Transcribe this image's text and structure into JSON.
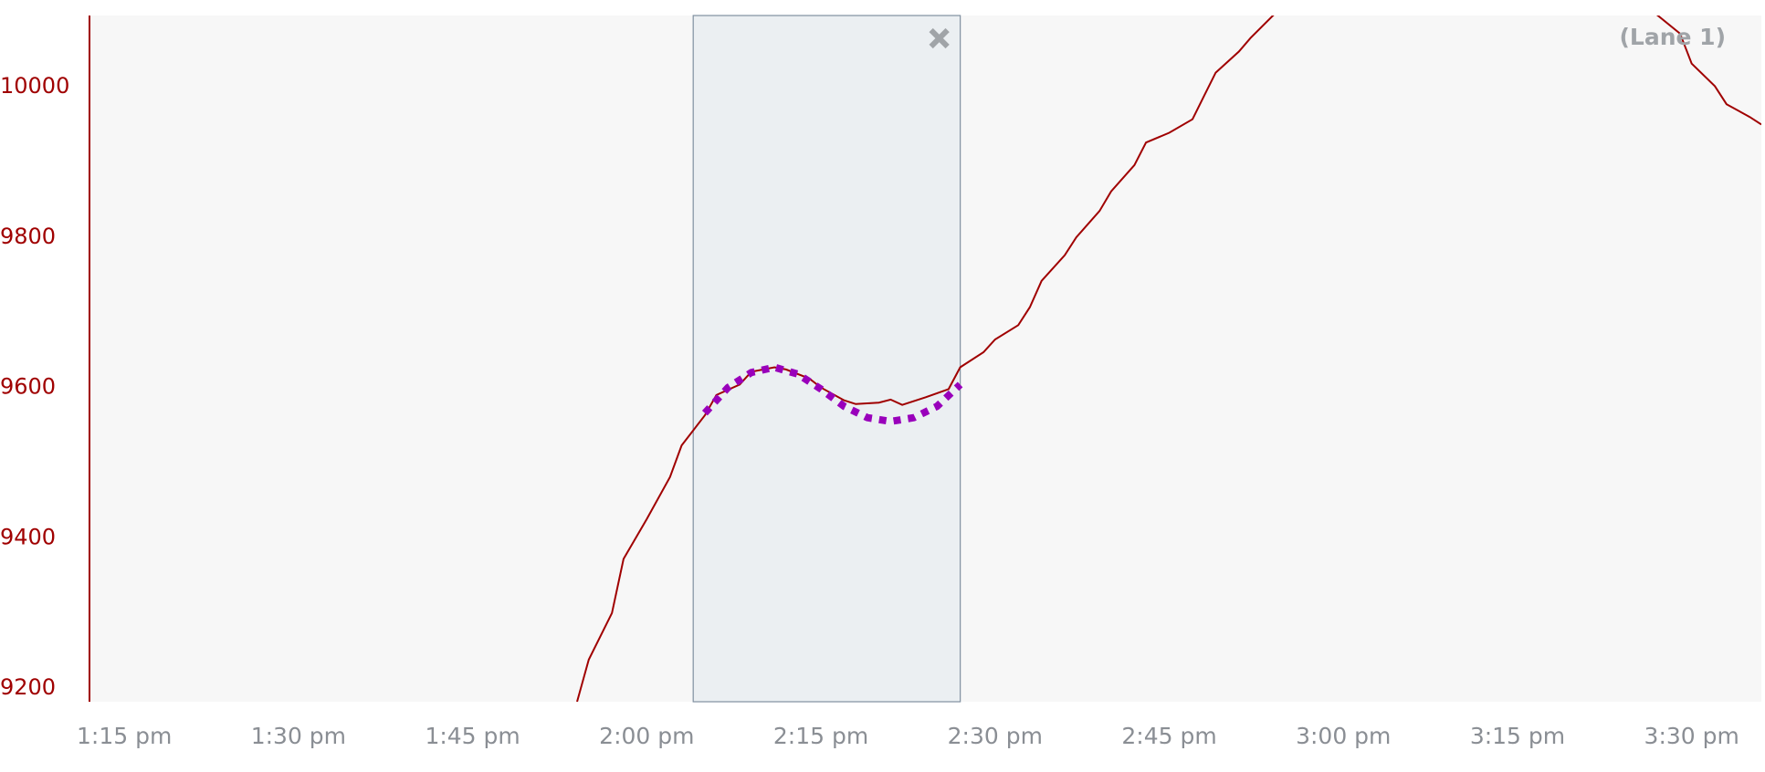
{
  "chart_data": {
    "type": "line",
    "lane_label": "(Lane 1)",
    "xlim": [
      "1:12 pm",
      "3:36 pm"
    ],
    "xticks": [
      "1:15 pm",
      "1:30 pm",
      "1:45 pm",
      "2:00 pm",
      "2:15 pm",
      "2:30 pm",
      "2:45 pm",
      "3:00 pm",
      "3:15 pm",
      "3:30 pm"
    ],
    "ylim": [
      9182,
      10095
    ],
    "yticks": [
      9200,
      9400,
      9600,
      9800,
      10000
    ],
    "selection": [
      "2:04 pm",
      "2:27 pm"
    ],
    "series": [
      {
        "color": "#a00000",
        "style": "solid",
        "x": [
          "1:54 pm",
          "1:55 pm",
          "1:57 pm",
          "1:58 pm",
          "2:00 pm",
          "2:02 pm",
          "2:03 pm",
          "2:05 pm",
          "2:06 pm",
          "2:08 pm",
          "2:09 pm",
          "2:11 pm",
          "2:12 pm",
          "2:14 pm",
          "2:15 pm",
          "2:17 pm",
          "2:18 pm",
          "2:20 pm",
          "2:21 pm",
          "2:22 pm",
          "2:24 pm",
          "2:26 pm",
          "2:27 pm",
          "2:29 pm",
          "2:30 pm",
          "2:32 pm",
          "2:33 pm",
          "2:34 pm",
          "2:36 pm",
          "2:37 pm",
          "2:39 pm",
          "2:40 pm",
          "2:42 pm",
          "2:43 pm",
          "2:45 pm",
          "2:47 pm",
          "2:48 pm",
          "2:49 pm",
          "2:51 pm",
          "2:52 pm",
          "2:54 pm",
          "3:10 pm",
          "3:27 pm",
          "3:29 pm",
          "3:30 pm",
          "3:32 pm",
          "3:33 pm",
          "3:35 pm",
          "3:36 pm"
        ],
        "values": [
          9182,
          9238,
          9300,
          9372,
          9425,
          9481,
          9523,
          9563,
          9590,
          9604,
          9621,
          9627,
          9624,
          9612,
          9600,
          9583,
          9578,
          9580,
          9584,
          9577,
          9587,
          9598,
          9627,
          9647,
          9664,
          9683,
          9707,
          9742,
          9776,
          9800,
          9835,
          9861,
          9896,
          9926,
          9939,
          9957,
          9988,
          10019,
          10047,
          10065,
          10096,
          null,
          10096,
          10071,
          10031,
          10001,
          9977,
          9960,
          9950
        ]
      },
      {
        "color": "#9900bb",
        "style": "dotted",
        "x": [
          "2:05 pm",
          "2:07 pm",
          "2:09 pm",
          "2:11 pm",
          "2:13 pm",
          "2:15 pm",
          "2:17 pm",
          "2:19 pm",
          "2:21 pm",
          "2:23 pm",
          "2:25 pm",
          "2:27 pm"
        ],
        "values": [
          9566,
          9600,
          9620,
          9627,
          9618,
          9598,
          9575,
          9560,
          9555,
          9560,
          9575,
          9604
        ]
      }
    ]
  }
}
